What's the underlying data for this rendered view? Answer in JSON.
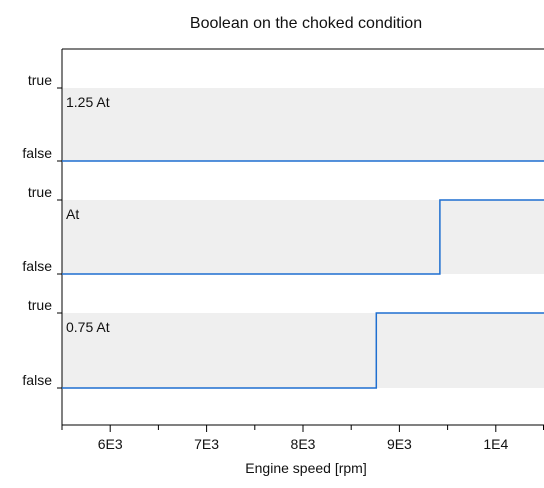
{
  "chart_data": {
    "type": "line",
    "title": "Boolean on the choked condition",
    "xlabel": "Engine speed [rpm]",
    "ylabel": "",
    "xlim": [
      5500,
      10500
    ],
    "x_ticks": [
      {
        "value": 6000,
        "label": "6E3"
      },
      {
        "value": 7000,
        "label": "7E3"
      },
      {
        "value": 8000,
        "label": "8E3"
      },
      {
        "value": 9000,
        "label": "9E3"
      },
      {
        "value": 10000,
        "label": "1E4"
      }
    ],
    "x_minor_ticks": [
      5500,
      6500,
      7500,
      8500,
      9500,
      10500
    ],
    "y_labels": {
      "true": "true",
      "false": "false"
    },
    "line_color": "#1f6fd0",
    "band_color": "#efefef",
    "series": [
      {
        "name": "1.25 At",
        "x": [
          5500,
          10500
        ],
        "y": [
          0,
          0
        ]
      },
      {
        "name": "At",
        "x": [
          5500,
          9420,
          9420,
          10500
        ],
        "y": [
          0,
          0,
          1,
          1
        ]
      },
      {
        "name": "0.75 At",
        "x": [
          5500,
          8760,
          8760,
          10500
        ],
        "y": [
          0,
          0,
          1,
          1
        ]
      }
    ]
  }
}
